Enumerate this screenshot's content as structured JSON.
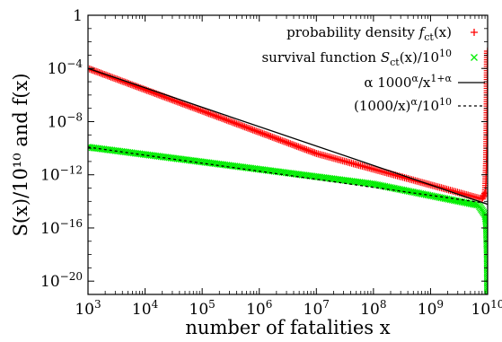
{
  "chart_data": {
    "type": "scatter",
    "xlabel": "number of fatalities x",
    "ylabel": "S(x)/10¹⁰ and f(x)",
    "xscale": "log",
    "yscale": "log",
    "xlim": [
      1000,
      10000000000
    ],
    "ylim": [
      1e-21,
      1
    ],
    "grid": false,
    "legend_position": "top-right",
    "x_tick_labels": [
      {
        "value": 1000,
        "mant": "10",
        "exp": "3"
      },
      {
        "value": 10000,
        "mant": "10",
        "exp": "4"
      },
      {
        "value": 100000,
        "mant": "10",
        "exp": "5"
      },
      {
        "value": 1000000,
        "mant": "10",
        "exp": "6"
      },
      {
        "value": 10000000,
        "mant": "10",
        "exp": "7"
      },
      {
        "value": 100000000,
        "mant": "10",
        "exp": "8"
      },
      {
        "value": 1000000000,
        "mant": "10",
        "exp": "9"
      },
      {
        "value": 10000000000,
        "mant": "10",
        "exp": "10"
      }
    ],
    "y_tick_labels": [
      {
        "value": 1,
        "mant": "1",
        "exp": ""
      },
      {
        "value": 0.0001,
        "mant": "10",
        "exp": "−4"
      },
      {
        "value": 1e-08,
        "mant": "10",
        "exp": "−8"
      },
      {
        "value": 1e-12,
        "mant": "10",
        "exp": "−12"
      },
      {
        "value": 1e-16,
        "mant": "10",
        "exp": "−16"
      },
      {
        "value": 1e-20,
        "mant": "10",
        "exp": "−20"
      }
    ],
    "series": [
      {
        "name": "probability density f_ct(x)",
        "marker": "+",
        "color": "#ff0000",
        "points": [
          [
            1000,
            0.0001
          ],
          [
            10000000,
            4e-11
          ],
          [
            8000000000,
            1.5e-14
          ],
          [
            9200000000,
            5e-14
          ],
          [
            9600000000,
            1e-11
          ],
          [
            9800000000,
            1e-08
          ],
          [
            9900000000,
            0.0001
          ],
          [
            9950000000,
            0.002
          ]
        ]
      },
      {
        "name": "survival function S_ct(x)/10^10",
        "marker": "x",
        "color": "#00ee00",
        "points": [
          [
            1000,
            1.2e-10
          ],
          [
            100000000,
            2e-13
          ],
          [
            7000000000,
            5e-15
          ],
          [
            9000000000,
            1e-15
          ],
          [
            9500000000,
            2e-16
          ],
          [
            9800000000,
            1e-18
          ],
          [
            9900000000,
            1e-20
          ],
          [
            9950000000,
            1e-21
          ]
        ]
      },
      {
        "name": "α 1000^α/x^(1+α)",
        "style": "solid",
        "color": "#000000",
        "points": [
          [
            1000,
            0.0001
          ],
          [
            10000000000,
            6e-15
          ]
        ]
      },
      {
        "name": "(1000/x)^α/10^10",
        "style": "dashed",
        "color": "#000000",
        "points": [
          [
            1000,
            1.2e-10
          ],
          [
            10000000000,
            7e-15
          ]
        ]
      }
    ],
    "legend": [
      {
        "pre": "probability density ",
        "sym": "f",
        "sub": "ct",
        "post": "(x)",
        "sup": "",
        "tail": "",
        "marker": "+",
        "color": "#ff0000"
      },
      {
        "pre": "survival function ",
        "sym": "S",
        "sub": "ct",
        "post": "(x)/10",
        "sup": "10",
        "tail": "",
        "marker": "x",
        "color": "#00ee00"
      },
      {
        "pre": "α 1000",
        "sym": "",
        "sub": "",
        "post": "",
        "sup": "α",
        "tail": "/x",
        "sup2": "1+α",
        "marker": "solid",
        "color": "#000000"
      },
      {
        "pre": "(1000/x)",
        "sym": "",
        "sub": "",
        "post": "",
        "sup": "α",
        "tail": "/10",
        "sup2": "10",
        "marker": "dashed",
        "color": "#000000"
      }
    ]
  }
}
